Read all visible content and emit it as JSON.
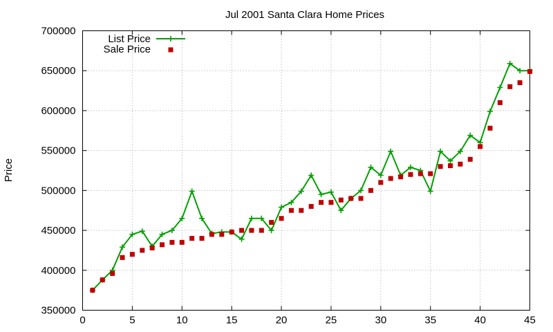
{
  "chart_data": {
    "type": "line",
    "title": "Jul 2001 Santa Clara Home Prices",
    "xlabel": "",
    "ylabel": "Price",
    "xlim": [
      0,
      45
    ],
    "ylim": [
      350000,
      700000
    ],
    "x_ticks": [
      0,
      5,
      10,
      15,
      20,
      25,
      30,
      35,
      40,
      45
    ],
    "y_ticks": [
      350000,
      400000,
      450000,
      500000,
      550000,
      600000,
      650000,
      700000
    ],
    "grid": true,
    "legend_position": "top-left",
    "series": [
      {
        "name": "List Price",
        "style": "line-with-plus-markers",
        "color": "#00a000",
        "x": [
          1,
          2,
          3,
          4,
          5,
          6,
          7,
          8,
          9,
          10,
          11,
          12,
          13,
          14,
          15,
          16,
          17,
          18,
          19,
          20,
          21,
          22,
          23,
          24,
          25,
          26,
          27,
          28,
          29,
          30,
          31,
          32,
          33,
          34,
          35,
          36,
          37,
          38,
          39,
          40,
          41,
          42,
          43,
          44,
          45
        ],
        "values": [
          375000,
          388000,
          400000,
          429000,
          445000,
          449000,
          430000,
          445000,
          450000,
          465000,
          499000,
          465000,
          446000,
          448000,
          448000,
          439000,
          465000,
          465000,
          450000,
          479000,
          485000,
          499000,
          519000,
          495000,
          498000,
          475000,
          490000,
          500000,
          529000,
          519000,
          549000,
          519000,
          529000,
          525000,
          499000,
          549000,
          537000,
          549000,
          569000,
          560000,
          599000,
          629000,
          659000,
          650000,
          650000
        ]
      },
      {
        "name": "Sale Price",
        "style": "square-markers",
        "color": "#c00000",
        "x": [
          1,
          2,
          3,
          4,
          5,
          6,
          7,
          8,
          9,
          10,
          11,
          12,
          13,
          14,
          15,
          16,
          17,
          18,
          19,
          20,
          21,
          22,
          23,
          24,
          25,
          26,
          27,
          28,
          29,
          30,
          31,
          32,
          33,
          34,
          35,
          36,
          37,
          38,
          39,
          40,
          41,
          42,
          43,
          44,
          45
        ],
        "values": [
          375000,
          388000,
          396000,
          416000,
          420000,
          425000,
          428000,
          432000,
          435000,
          435000,
          440000,
          440000,
          445000,
          445000,
          448000,
          450000,
          450000,
          450000,
          460000,
          465000,
          475000,
          475000,
          480000,
          485000,
          485000,
          488000,
          490000,
          490000,
          500000,
          510000,
          515000,
          517000,
          520000,
          521000,
          521000,
          530000,
          531000,
          533000,
          539000,
          555000,
          578000,
          610000,
          630000,
          635000,
          649000
        ]
      }
    ]
  }
}
